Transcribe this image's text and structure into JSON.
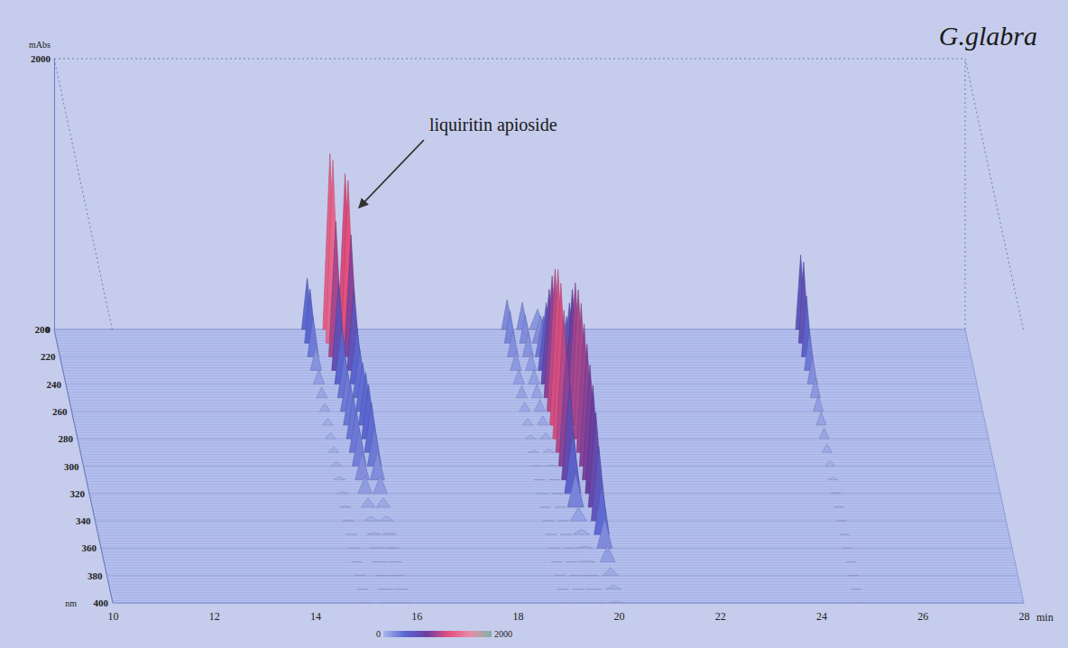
{
  "chart_data": {
    "type": "3d_chromatogram",
    "title": "G.glabra",
    "x_label": "min",
    "y_label": "nm",
    "z_label": "mAbs",
    "xlim": [
      10,
      28
    ],
    "xticks": [
      10,
      12,
      14,
      16,
      18,
      20,
      22,
      24,
      26,
      28
    ],
    "ylim": [
      200,
      400
    ],
    "yticks": [
      200,
      220,
      240,
      260,
      280,
      300,
      320,
      340,
      360,
      380,
      400
    ],
    "zlim": [
      0,
      2000
    ],
    "zticks": [
      0,
      2000
    ],
    "wavelengths": [
      200,
      210,
      220,
      230,
      240,
      250,
      260,
      270,
      280,
      290,
      300,
      310,
      320,
      330,
      340,
      350,
      360,
      370,
      380,
      390,
      400
    ],
    "peaks": [
      {
        "time": 15.0,
        "width": 0.22,
        "values": [
          380,
          400,
          300,
          180,
          110,
          80,
          60,
          50,
          45,
          40,
          35,
          25,
          15,
          8,
          5,
          0,
          0,
          0,
          0,
          0,
          0
        ]
      },
      {
        "time": 15.45,
        "width": 0.28,
        "values": [
          1300,
          1350,
          1000,
          650,
          420,
          330,
          300,
          310,
          320,
          310,
          270,
          200,
          130,
          70,
          35,
          15,
          5,
          0,
          0,
          0,
          0
        ]
      },
      {
        "time": 15.75,
        "width": 0.28,
        "values": [
          1150,
          1200,
          900,
          600,
          420,
          360,
          360,
          390,
          400,
          370,
          300,
          210,
          130,
          70,
          35,
          15,
          5,
          0,
          0,
          0,
          0
        ]
      },
      {
        "time": 18.95,
        "width": 0.22,
        "values": [
          220,
          240,
          190,
          140,
          110,
          90,
          70,
          50,
          30,
          15,
          5,
          0,
          0,
          0,
          0,
          0,
          0,
          0,
          0,
          0,
          0
        ]
      },
      {
        "time": 19.25,
        "width": 0.22,
        "values": [
          200,
          210,
          170,
          130,
          110,
          100,
          90,
          70,
          45,
          25,
          10,
          0,
          0,
          0,
          0,
          0,
          0,
          0,
          0,
          0,
          0
        ]
      },
      {
        "time": 19.55,
        "width": 0.32,
        "values": [
          150,
          200,
          300,
          500,
          700,
          900,
          1050,
          1150,
          1150,
          1050,
          900,
          700,
          450,
          250,
          100,
          40,
          15,
          5,
          0,
          0,
          0
        ]
      },
      {
        "time": 19.95,
        "width": 0.3,
        "values": [
          100,
          150,
          250,
          400,
          600,
          800,
          950,
          1000,
          1000,
          950,
          900,
          850,
          800,
          700,
          550,
          380,
          220,
          120,
          60,
          30,
          10
        ]
      },
      {
        "time": 24.75,
        "width": 0.2,
        "values": [
          550,
          600,
          450,
          300,
          200,
          150,
          120,
          100,
          80,
          60,
          40,
          20,
          10,
          5,
          0,
          0,
          0,
          0,
          0,
          0,
          0
        ]
      }
    ],
    "annotations": [
      {
        "text": "liquiritin apioside",
        "time": 15.75
      }
    ],
    "colorbar": {
      "range": [
        0,
        2000
      ],
      "ticks": [
        0,
        2000
      ]
    }
  }
}
